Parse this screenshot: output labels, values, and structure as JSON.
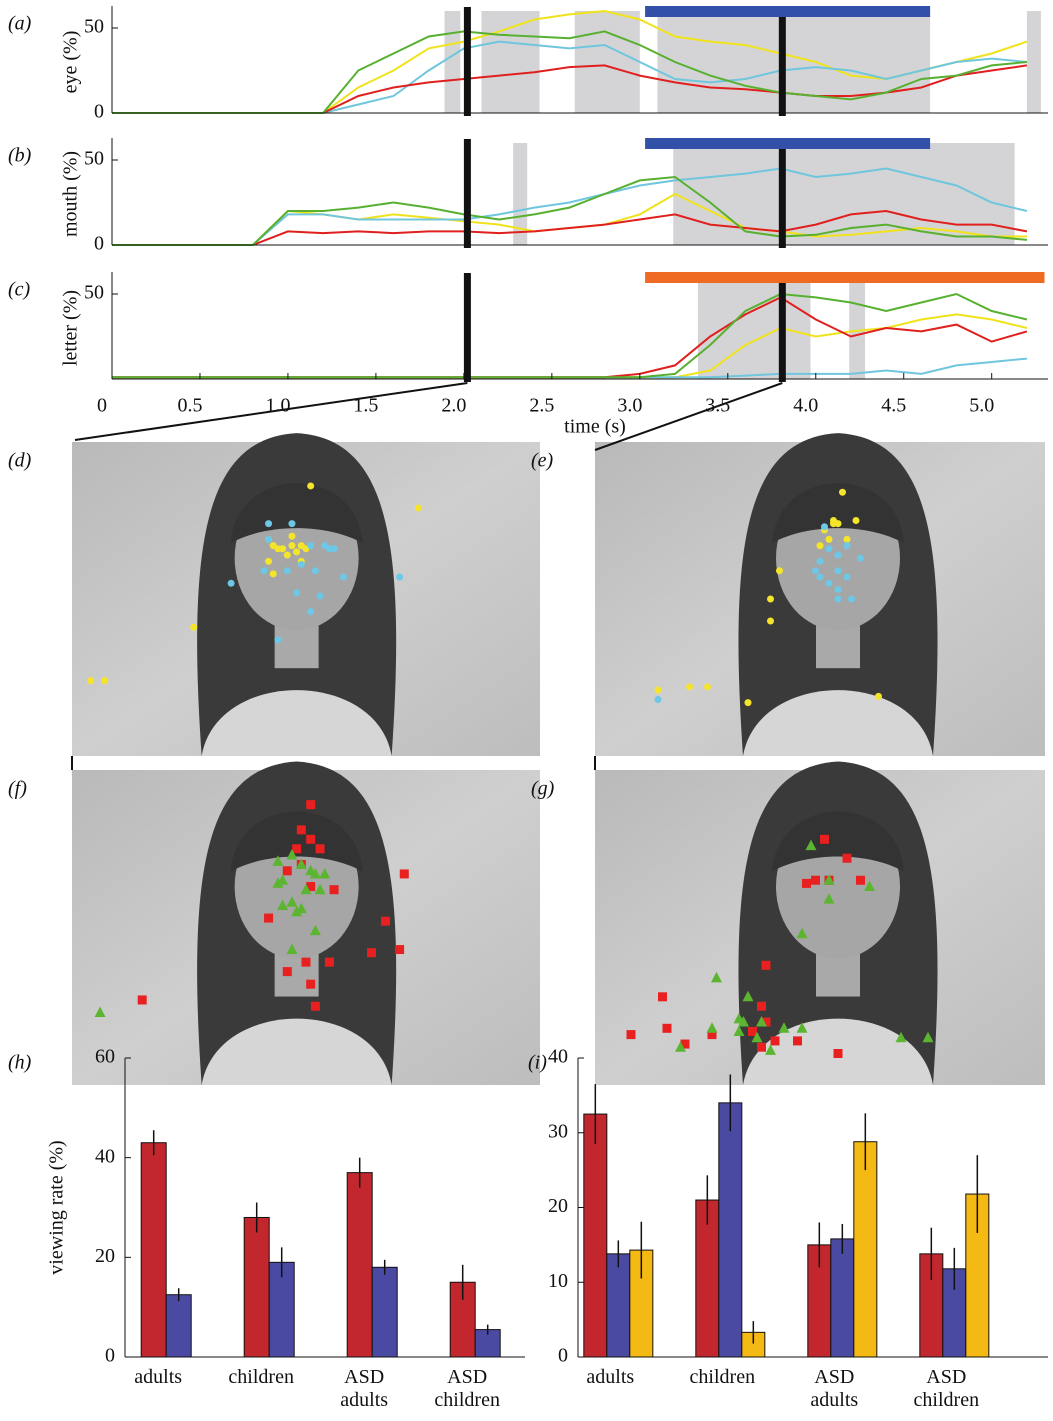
{
  "chart_data": [
    {
      "type": "line",
      "panel_label": "(a)",
      "ylabel": "eye (%)",
      "x": [
        0,
        0.2,
        0.4,
        0.6,
        0.8,
        1,
        1.2,
        1.4,
        1.6,
        1.8,
        2,
        2.2,
        2.4,
        2.6,
        2.8,
        3,
        3.2,
        3.4,
        3.6,
        3.8,
        4,
        4.2,
        4.4,
        4.6,
        4.8,
        5,
        5.2
      ],
      "xlim": [
        0,
        5.32
      ],
      "ylim": [
        0,
        60
      ],
      "yticks": [
        0,
        50
      ],
      "shaded": [
        [
          1.89,
          1.98
        ],
        [
          2.1,
          2.43
        ],
        [
          2.63,
          3.0
        ],
        [
          3.1,
          4.65
        ],
        [
          5.2,
          5.28
        ]
      ],
      "shade_color": "#d4d4d6",
      "vlines": [
        2.02,
        3.81
      ],
      "band": {
        "start": 3.03,
        "end": 4.65,
        "color": "#3350a8"
      },
      "series": [
        {
          "color": "#f0e21b",
          "values": [
            0,
            0,
            0,
            0,
            0,
            0,
            0,
            15,
            25,
            38,
            42,
            48,
            55,
            58,
            60,
            55,
            45,
            42,
            40,
            35,
            30,
            22,
            20,
            25,
            30,
            35,
            42
          ]
        },
        {
          "color": "#6fc6dd",
          "values": [
            0,
            0,
            0,
            0,
            0,
            0,
            0,
            5,
            10,
            25,
            38,
            42,
            40,
            38,
            40,
            30,
            20,
            18,
            20,
            25,
            27,
            25,
            20,
            25,
            30,
            32,
            30
          ]
        },
        {
          "color": "#e0201e",
          "values": [
            0,
            0,
            0,
            0,
            0,
            0,
            0,
            10,
            15,
            18,
            20,
            22,
            24,
            27,
            28,
            22,
            18,
            15,
            14,
            12,
            10,
            10,
            12,
            15,
            22,
            25,
            28
          ]
        },
        {
          "color": "#58b030",
          "values": [
            0,
            0,
            0,
            0,
            0,
            0,
            0,
            25,
            35,
            45,
            48,
            46,
            45,
            44,
            48,
            40,
            30,
            22,
            16,
            12,
            10,
            8,
            12,
            20,
            22,
            28,
            30
          ]
        }
      ]
    },
    {
      "type": "line",
      "panel_label": "(b)",
      "ylabel": "mouth (%)",
      "x": [
        0,
        0.2,
        0.4,
        0.6,
        0.8,
        1,
        1.2,
        1.4,
        1.6,
        1.8,
        2,
        2.2,
        2.4,
        2.6,
        2.8,
        3,
        3.2,
        3.4,
        3.6,
        3.8,
        4,
        4.2,
        4.4,
        4.6,
        4.8,
        5,
        5.2
      ],
      "xlim": [
        0,
        5.32
      ],
      "ylim": [
        0,
        60
      ],
      "yticks": [
        0,
        50
      ],
      "shaded": [
        [
          2.28,
          2.36
        ],
        [
          3.19,
          5.13
        ]
      ],
      "shade_color": "#d4d4d6",
      "vlines": [
        2.02,
        3.81
      ],
      "band": {
        "start": 3.03,
        "end": 4.65,
        "color": "#3350a8"
      },
      "series": [
        {
          "color": "#f0e21b",
          "values": [
            0,
            0,
            0,
            0,
            0,
            20,
            18,
            15,
            18,
            16,
            14,
            12,
            8,
            10,
            12,
            18,
            30,
            20,
            10,
            8,
            5,
            6,
            8,
            10,
            8,
            5,
            5
          ]
        },
        {
          "color": "#6fc6dd",
          "values": [
            0,
            0,
            0,
            0,
            0,
            18,
            18,
            15,
            15,
            15,
            15,
            18,
            22,
            25,
            30,
            35,
            38,
            40,
            42,
            45,
            40,
            42,
            45,
            40,
            35,
            25,
            20
          ]
        },
        {
          "color": "#e0201e",
          "values": [
            0,
            0,
            0,
            0,
            0,
            8,
            7,
            8,
            7,
            8,
            8,
            7,
            8,
            10,
            12,
            15,
            18,
            12,
            10,
            8,
            12,
            18,
            20,
            15,
            12,
            12,
            8
          ]
        },
        {
          "color": "#58b030",
          "values": [
            0,
            0,
            0,
            0,
            0,
            20,
            20,
            22,
            25,
            22,
            18,
            15,
            18,
            22,
            30,
            38,
            40,
            25,
            8,
            5,
            6,
            10,
            12,
            8,
            5,
            5,
            3
          ]
        }
      ]
    },
    {
      "type": "line",
      "panel_label": "(c)",
      "ylabel": "letter (%)",
      "xlabel": "time (s)",
      "x": [
        0,
        0.2,
        0.4,
        0.6,
        0.8,
        1,
        1.2,
        1.4,
        1.6,
        1.8,
        2,
        2.2,
        2.4,
        2.6,
        2.8,
        3,
        3.2,
        3.4,
        3.6,
        3.8,
        4,
        4.2,
        4.4,
        4.6,
        4.8,
        5,
        5.2
      ],
      "xlim": [
        0,
        5.32
      ],
      "ylim": [
        0,
        60
      ],
      "yticks": [
        50
      ],
      "xticks": [
        0,
        0.5,
        {
          "value": 1,
          "label": "1.0"
        },
        1.5,
        {
          "value": 2,
          "label": "2.0"
        },
        2.5,
        {
          "value": 3,
          "label": "3.0"
        },
        3.5,
        {
          "value": 4,
          "label": "4.0"
        },
        4.5,
        {
          "value": 5,
          "label": "5.0"
        }
      ],
      "shaded": [
        [
          3.33,
          3.97
        ],
        [
          4.19,
          4.28
        ]
      ],
      "shade_color": "#d4d4d6",
      "vlines": [
        2.02,
        3.81
      ],
      "band": {
        "start": 3.03,
        "end": 5.3,
        "color": "#ef6a22"
      },
      "series": [
        {
          "color": "#f0e21b",
          "values": [
            1,
            1,
            1,
            1,
            1,
            1,
            1,
            1,
            1,
            1,
            1,
            1,
            1,
            1,
            1,
            1,
            1,
            5,
            20,
            30,
            25,
            28,
            30,
            35,
            38,
            35,
            30
          ]
        },
        {
          "color": "#6fc6dd",
          "values": [
            1,
            1,
            1,
            1,
            1,
            1,
            1,
            1,
            1,
            1,
            1,
            1,
            1,
            1,
            1,
            1,
            1,
            1,
            2,
            3,
            3,
            3,
            5,
            3,
            8,
            10,
            12
          ]
        },
        {
          "color": "#e0201e",
          "values": [
            1,
            1,
            1,
            1,
            1,
            1,
            1,
            1,
            1,
            1,
            1,
            1,
            1,
            1,
            1,
            3,
            8,
            25,
            38,
            48,
            35,
            25,
            30,
            28,
            32,
            22,
            28
          ]
        },
        {
          "color": "#58b030",
          "values": [
            1,
            1,
            1,
            1,
            1,
            1,
            1,
            1,
            1,
            1,
            1,
            1,
            1,
            1,
            1,
            1,
            3,
            20,
            40,
            50,
            48,
            45,
            40,
            45,
            50,
            40,
            35
          ]
        }
      ]
    },
    {
      "type": "scatter",
      "panel_label": "(d)",
      "series": [
        {
          "color": "#f5e52a",
          "marker": "circle",
          "x": [
            51,
            74,
            42,
            44,
            47,
            48,
            46,
            49,
            43,
            42,
            50,
            47,
            26,
            4,
            7,
            43,
            45,
            49
          ],
          "y": [
            14,
            21,
            31,
            34,
            33,
            35,
            36,
            38,
            33,
            38,
            34,
            30,
            59,
            76,
            76,
            42,
            34,
            33
          ]
        },
        {
          "color": "#6cc8e6",
          "marker": "circle",
          "x": [
            42,
            47,
            51,
            54,
            49,
            52,
            55,
            58,
            48,
            53,
            51,
            44,
            34,
            70,
            56,
            46,
            41,
            42
          ],
          "y": [
            26,
            26,
            33,
            33,
            39,
            41,
            34,
            43,
            48,
            49,
            54,
            63,
            45,
            43,
            34,
            41,
            41,
            31
          ]
        }
      ]
    },
    {
      "type": "scatter",
      "panel_label": "(e)",
      "series": [
        {
          "color": "#f5e52a",
          "marker": "circle",
          "x": [
            55,
            58,
            53,
            56,
            52,
            51,
            50,
            54,
            41,
            39,
            39,
            14,
            21,
            25,
            34,
            63,
            53
          ],
          "y": [
            16,
            25,
            26,
            31,
            31,
            28,
            33,
            26,
            41,
            50,
            57,
            79,
            78,
            78,
            83,
            81,
            25
          ]
        },
        {
          "color": "#6cc8e6",
          "marker": "circle",
          "x": [
            51,
            52,
            54,
            56,
            50,
            54,
            56,
            52,
            50,
            54,
            57,
            59,
            49,
            54,
            14
          ],
          "y": [
            27,
            34,
            36,
            33,
            38,
            41,
            43,
            45,
            43,
            47,
            50,
            37,
            41,
            50,
            82
          ]
        }
      ]
    },
    {
      "type": "scatter",
      "panel_label": "(f)",
      "series": [
        {
          "color": "#e8201f",
          "marker": "square",
          "x": [
            51,
            49,
            51,
            48,
            53,
            49,
            46,
            51,
            56,
            71,
            42,
            67,
            64,
            70,
            55,
            50,
            46,
            51,
            52,
            15
          ],
          "y": [
            11,
            19,
            22,
            25,
            25,
            30,
            32,
            37,
            38,
            33,
            47,
            48,
            58,
            57,
            61,
            61,
            64,
            68,
            75,
            73
          ]
        },
        {
          "color": "#5cb531",
          "marker": "triangle",
          "x": [
            44,
            47,
            49,
            45,
            51,
            53,
            52,
            47,
            48,
            49,
            45,
            52,
            47,
            6,
            44,
            50,
            54
          ],
          "y": [
            29,
            27,
            30,
            35,
            32,
            38,
            33,
            42,
            45,
            44,
            43,
            51,
            57,
            77,
            36,
            38,
            33
          ]
        }
      ]
    },
    {
      "type": "scatter",
      "panel_label": "(g)",
      "series": [
        {
          "color": "#e8201f",
          "marker": "square",
          "x": [
            51,
            56,
            47,
            49,
            52,
            59,
            38,
            15,
            37,
            38,
            8,
            16,
            20,
            26,
            35,
            37,
            45,
            54,
            40
          ],
          "y": [
            22,
            28,
            36,
            35,
            35,
            35,
            62,
            72,
            75,
            80,
            84,
            82,
            87,
            84,
            83,
            88,
            86,
            90,
            86
          ]
        },
        {
          "color": "#5cb531",
          "marker": "triangle",
          "x": [
            48,
            52,
            52,
            61,
            46,
            27,
            34,
            33,
            32,
            26,
            37,
            42,
            46,
            39,
            19,
            68,
            74,
            32,
            36
          ],
          "y": [
            24,
            35,
            41,
            37,
            52,
            66,
            72,
            80,
            83,
            82,
            80,
            82,
            82,
            89,
            88,
            85,
            85,
            79,
            85
          ]
        }
      ]
    },
    {
      "type": "bar",
      "panel_label": "(h)",
      "ylabel": "viewing rate (%)",
      "categories": [
        "adults",
        "children",
        "ASD adults",
        "ASD children"
      ],
      "ylim": [
        0,
        60
      ],
      "yticks": [
        0,
        20,
        40,
        60
      ],
      "series": [
        {
          "color": "#c1272d",
          "values": [
            43,
            28,
            37,
            15
          ],
          "errors": [
            2.5,
            3,
            3,
            3.5
          ]
        },
        {
          "color": "#4b4aa3",
          "values": [
            12.5,
            19,
            18,
            5.5
          ],
          "errors": [
            1.3,
            3,
            1.5,
            1
          ]
        }
      ]
    },
    {
      "type": "bar",
      "panel_label": "(i)",
      "categories": [
        "adults",
        "children",
        "ASD adults",
        "ASD children"
      ],
      "ylim": [
        0,
        40
      ],
      "yticks": [
        0,
        10,
        20,
        30,
        40
      ],
      "series": [
        {
          "color": "#c1272d",
          "values": [
            32.5,
            21,
            15,
            13.8
          ],
          "errors": [
            4,
            3.3,
            3,
            3.5
          ]
        },
        {
          "color": "#4b4aa3",
          "values": [
            13.8,
            34,
            15.8,
            11.8
          ],
          "errors": [
            1.8,
            3.8,
            2,
            2.8
          ]
        },
        {
          "color": "#f5b914",
          "values": [
            14.3,
            3.3,
            28.8,
            21.8
          ],
          "errors": [
            3.8,
            1.5,
            3.8,
            5.2
          ]
        }
      ]
    }
  ]
}
